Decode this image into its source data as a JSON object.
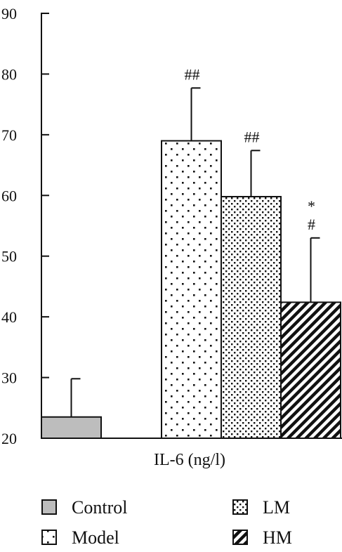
{
  "chart_data": {
    "type": "bar",
    "xlabel": "IL-6 (ng/l)",
    "ylim": [
      20,
      90
    ],
    "yticks": [
      20,
      30,
      40,
      50,
      60,
      70,
      80,
      90
    ],
    "grid": false,
    "legend_placement": "bottom",
    "series": [
      {
        "name": "Control",
        "value": 23.5,
        "error": 6.3,
        "annotation": "",
        "pattern": "solid-gray",
        "color": "#bdbdbd"
      },
      {
        "name": "Model",
        "value": 69.0,
        "error": 8.7,
        "annotation": "##",
        "pattern": "sparse-dots",
        "color": "#ffffff"
      },
      {
        "name": "LM",
        "value": 59.8,
        "error": 7.6,
        "annotation": "##",
        "pattern": "dense-dots",
        "color": "#ffffff"
      },
      {
        "name": "HM",
        "value": 42.4,
        "error": 10.6,
        "annotation": "*\n#",
        "pattern": "diagonal-stripes",
        "color": "#ffffff"
      }
    ]
  }
}
